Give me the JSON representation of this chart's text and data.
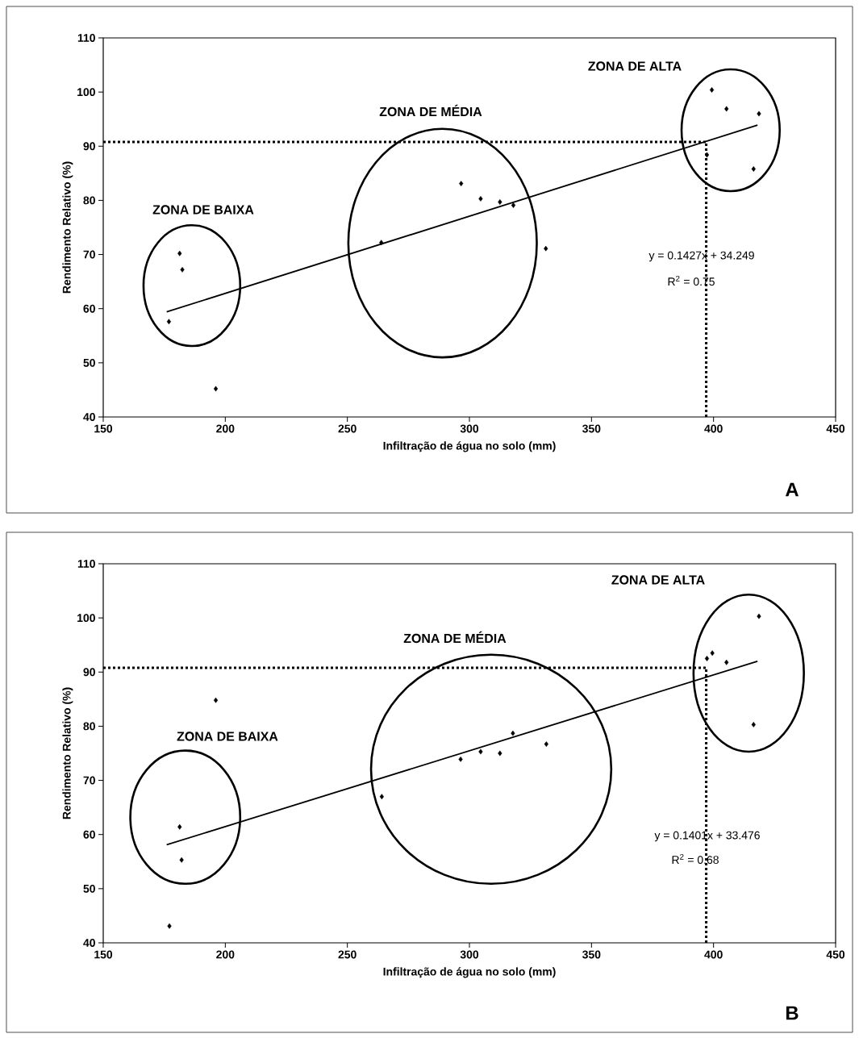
{
  "chart_data": [
    {
      "type": "scatter",
      "xlabel": "Infiltração de água no solo (mm)",
      "ylabel": "Rendimento Relativo (%)",
      "xlim": [
        150,
        450
      ],
      "xticks": [
        150,
        200,
        250,
        300,
        350,
        400,
        450
      ],
      "ylim": [
        40,
        110
      ],
      "yticks": [
        40,
        50,
        60,
        70,
        80,
        90,
        100,
        110
      ],
      "grid": false,
      "marker": "diamond",
      "series": [
        {
          "color": "#000000",
          "x": [
            176.9,
            181.3,
            182.4,
            196.1,
            263.9,
            296.6,
            304.6,
            312.5,
            318,
            331.3,
            397.3,
            399.3,
            405.3,
            416.4,
            418.6
          ],
          "values": [
            57.6,
            70.2,
            67.2,
            45.2,
            72.2,
            83.1,
            80.3,
            79.7,
            79.1,
            71.1,
            88.4,
            100.4,
            96.9,
            85.8,
            96.0
          ]
        },
        {
          "type": "line",
          "color": "#000000",
          "marker": "none",
          "line_style": "solid",
          "x": [
            176,
            418
          ],
          "values": [
            59.4,
            93.9
          ]
        }
      ],
      "ref_lines": [
        {
          "axis": "y",
          "value": 90.8,
          "line_style": "dotted"
        },
        {
          "axis": "x",
          "value": 397,
          "line_style": "dotted"
        }
      ],
      "annotations": [
        "ZONA DE BAIXA",
        "ZONA DE MÉDIA",
        "ZONA DE ALTA",
        "y = 0.1427x + 34.249",
        "R$^{2}$ = 0.75",
        "A"
      ]
    },
    {
      "type": "scatter",
      "xlabel": "Infiltração de água no solo (mm)",
      "ylabel": "Rendimento Relativo (%)",
      "xlim": [
        150,
        450
      ],
      "xticks": [
        150,
        200,
        250,
        300,
        350,
        400,
        450
      ],
      "ylim": [
        40,
        110
      ],
      "yticks": [
        40,
        50,
        60,
        70,
        80,
        90,
        100,
        110
      ],
      "grid": false,
      "marker": "diamond",
      "series": [
        {
          "color": "#000000",
          "x": [
            177.1,
            181.3,
            182.1,
            196.1,
            264.1,
            296.4,
            304.6,
            312.5,
            317.8,
            331.5,
            397.3,
            399.5,
            405.3,
            416.4,
            418.6
          ],
          "values": [
            43.1,
            61.4,
            55.3,
            84.8,
            67.0,
            73.9,
            75.3,
            75.0,
            78.7,
            76.7,
            92.5,
            93.5,
            91.8,
            80.3,
            100.3
          ]
        },
        {
          "type": "line",
          "color": "#000000",
          "marker": "none",
          "line_style": "solid",
          "x": [
            176,
            418
          ],
          "values": [
            58.1,
            92.0
          ]
        }
      ],
      "ref_lines": [
        {
          "axis": "y",
          "value": 90.8,
          "line_style": "dotted"
        },
        {
          "axis": "x",
          "value": 397,
          "line_style": "dotted"
        }
      ],
      "annotations": [
        "ZONA DE BAIXA",
        "ZONA DE MÉDIA",
        "ZONA DE ALTA",
        "y = 0.1401x + 33.476",
        "R$^{2}$ = 0.68",
        "B"
      ]
    }
  ]
}
